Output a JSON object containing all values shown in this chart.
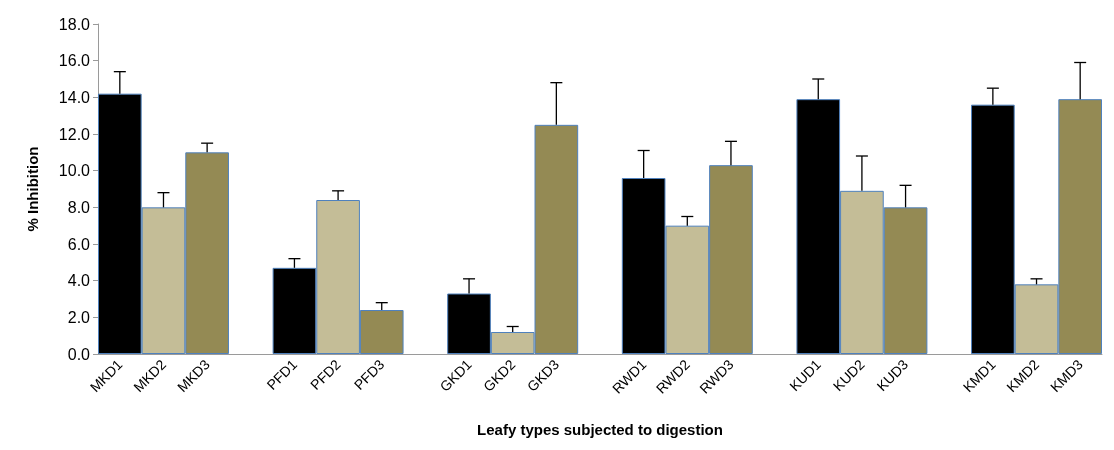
{
  "chart_data": {
    "type": "bar",
    "xlabel": "Leafy types subjected to digestion",
    "ylabel": "% Inhibition",
    "categories": [
      "MKD1",
      "MKD2",
      "MKD3",
      null,
      "PFD1",
      "PFD2",
      "PFD3",
      null,
      "GKD1",
      "GKD2",
      "GKD3",
      null,
      "RWD1",
      "RWD2",
      "RWD3",
      null,
      "KUD1",
      "KUD2",
      "KUD3",
      null,
      "KMD1",
      "KMD2",
      "KMD3"
    ],
    "values": [
      14.2,
      8.0,
      11.0,
      null,
      4.7,
      8.4,
      2.4,
      null,
      3.3,
      1.2,
      12.5,
      null,
      9.6,
      7.0,
      10.3,
      null,
      13.9,
      8.9,
      8.0,
      null,
      13.6,
      3.8,
      13.9
    ],
    "errors": [
      [
        14.2,
        15.4
      ],
      [
        8.0,
        8.8
      ],
      [
        11.0,
        11.5
      ],
      null,
      [
        4.7,
        5.2
      ],
      [
        8.4,
        8.9
      ],
      [
        2.4,
        2.8
      ],
      null,
      [
        3.3,
        4.1
      ],
      [
        1.2,
        1.5
      ],
      [
        12.5,
        14.8
      ],
      null,
      [
        9.6,
        11.1
      ],
      [
        7.0,
        7.5
      ],
      [
        10.3,
        11.6
      ],
      null,
      [
        13.9,
        15.0
      ],
      [
        8.9,
        10.8
      ],
      [
        8.0,
        9.2
      ],
      null,
      [
        13.6,
        14.5
      ],
      [
        3.8,
        4.1
      ],
      [
        13.9,
        15.9
      ]
    ],
    "colors": [
      "#000000",
      "#c4bd97",
      "#948a54",
      null,
      "#000000",
      "#c4bd97",
      "#948a54",
      null,
      "#000000",
      "#c4bd97",
      "#948a54",
      null,
      "#000000",
      "#c4bd97",
      "#948a54",
      null,
      "#000000",
      "#c4bd97",
      "#948a54",
      null,
      "#000000",
      "#c4bd97",
      "#948a54"
    ],
    "ylim": [
      0,
      18
    ],
    "yticks": [
      {
        "value": 0,
        "label": "0.0"
      },
      {
        "value": 2,
        "label": "2.0"
      },
      {
        "value": 4,
        "label": "4.0"
      },
      {
        "value": 6,
        "label": "6.0"
      },
      {
        "value": 8,
        "label": "8.0"
      },
      {
        "value": 10,
        "label": "10.0"
      },
      {
        "value": 12,
        "label": "12.0"
      },
      {
        "value": 14,
        "label": "14.0"
      },
      {
        "value": 16,
        "label": "16.0"
      },
      {
        "value": 18,
        "label": "18.0"
      }
    ],
    "grid": false
  }
}
